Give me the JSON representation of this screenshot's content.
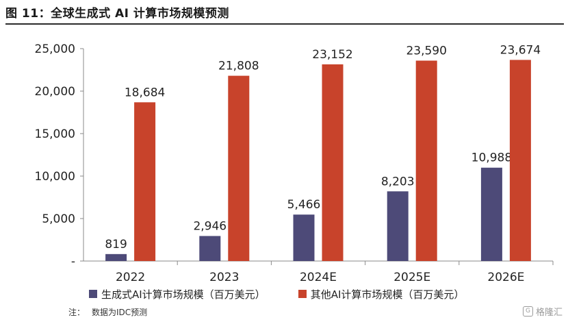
{
  "figure": {
    "title": "图 11：全球生成式 AI 计算市场规模预测"
  },
  "chart_data": {
    "type": "bar",
    "title": "",
    "xlabel": "",
    "ylabel": "",
    "categories": [
      "2022",
      "2023",
      "2024E",
      "2025E",
      "2026E"
    ],
    "series": [
      {
        "name": "生成式AI计算市场规模（百万美元）",
        "color": "#4d4a78",
        "values": [
          819,
          2946,
          5466,
          8203,
          10988
        ],
        "labels": [
          "819",
          "2,946",
          "5,466",
          "8,203",
          "10,988"
        ]
      },
      {
        "name": "其他AI计算市场规模（百万美元）",
        "color": "#c8432b",
        "values": [
          18684,
          21808,
          23152,
          23590,
          23674
        ],
        "labels": [
          "18,684",
          "21,808",
          "23,152",
          "23,590",
          "23,674"
        ]
      }
    ],
    "ylim": [
      0,
      25000
    ],
    "yticks": [
      0,
      5000,
      10000,
      15000,
      20000,
      25000
    ],
    "ytick_labels": [
      "-",
      "5,000",
      "10,000",
      "15,000",
      "20,000",
      "25,000"
    ],
    "grid": false,
    "legend_position": "bottom"
  },
  "note": {
    "prefix": "注：",
    "text": "数据为IDC预测"
  },
  "watermark": {
    "icon": "G",
    "text": "格隆汇"
  }
}
